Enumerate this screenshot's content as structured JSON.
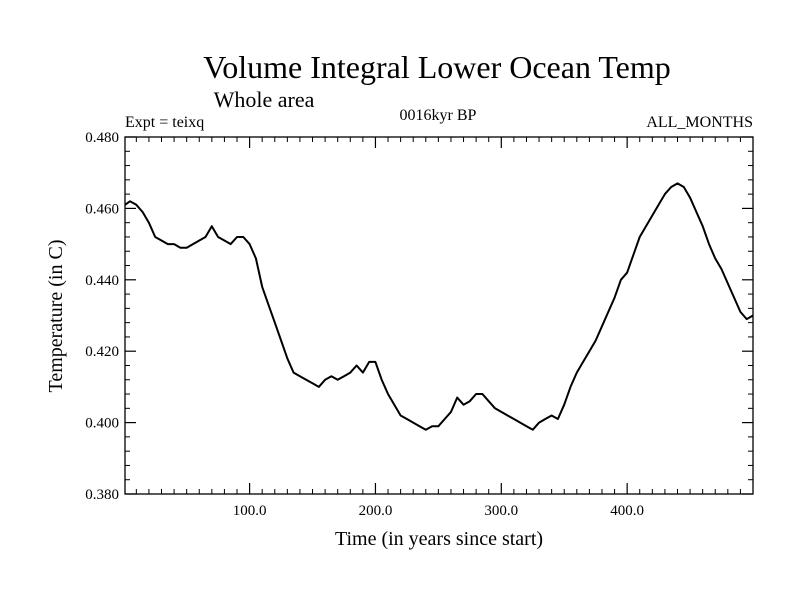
{
  "chart_data": {
    "type": "line",
    "title": "Volume Integral Lower Ocean Temp",
    "subtitle": "Whole area",
    "left_label": "Expt = teixq",
    "center_label": "0016kyr BP",
    "right_label": "ALL_MONTHS",
    "xlabel": "Time (in years since start)",
    "ylabel": "Temperature (in C)",
    "xlim": [
      1,
      500
    ],
    "ylim": [
      0.38,
      0.48
    ],
    "x_ticks": [
      {
        "value": 100,
        "label": "100.0"
      },
      {
        "value": 200,
        "label": "200.0"
      },
      {
        "value": 300,
        "label": "300.0"
      },
      {
        "value": 400,
        "label": "400.0"
      }
    ],
    "y_ticks": [
      {
        "value": 0.38,
        "label": "0.380"
      },
      {
        "value": 0.4,
        "label": "0.400"
      },
      {
        "value": 0.42,
        "label": "0.420"
      },
      {
        "value": 0.44,
        "label": "0.440"
      },
      {
        "value": 0.46,
        "label": "0.460"
      },
      {
        "value": 0.48,
        "label": "0.480"
      }
    ],
    "series": [
      {
        "name": "teixq",
        "x": [
          1,
          5,
          10,
          15,
          20,
          25,
          30,
          35,
          40,
          45,
          50,
          55,
          60,
          65,
          70,
          75,
          80,
          85,
          90,
          95,
          100,
          105,
          110,
          115,
          120,
          125,
          130,
          135,
          140,
          145,
          150,
          155,
          160,
          165,
          170,
          175,
          180,
          185,
          190,
          195,
          200,
          205,
          210,
          215,
          220,
          225,
          230,
          235,
          240,
          245,
          250,
          255,
          260,
          265,
          270,
          275,
          280,
          285,
          290,
          295,
          300,
          305,
          310,
          315,
          320,
          325,
          330,
          335,
          340,
          345,
          350,
          355,
          360,
          365,
          370,
          375,
          380,
          385,
          390,
          395,
          400,
          405,
          410,
          415,
          420,
          425,
          430,
          435,
          440,
          445,
          450,
          455,
          460,
          465,
          470,
          475,
          480,
          485,
          490,
          495,
          500
        ],
        "y": [
          0.461,
          0.462,
          0.461,
          0.459,
          0.456,
          0.452,
          0.451,
          0.45,
          0.45,
          0.449,
          0.449,
          0.45,
          0.451,
          0.452,
          0.455,
          0.452,
          0.451,
          0.45,
          0.452,
          0.452,
          0.45,
          0.446,
          0.438,
          0.433,
          0.428,
          0.423,
          0.418,
          0.414,
          0.413,
          0.412,
          0.411,
          0.41,
          0.412,
          0.413,
          0.412,
          0.413,
          0.414,
          0.416,
          0.414,
          0.417,
          0.417,
          0.412,
          0.408,
          0.405,
          0.402,
          0.401,
          0.4,
          0.399,
          0.398,
          0.399,
          0.399,
          0.401,
          0.403,
          0.407,
          0.405,
          0.406,
          0.408,
          0.408,
          0.406,
          0.404,
          0.403,
          0.402,
          0.401,
          0.4,
          0.399,
          0.398,
          0.4,
          0.401,
          0.402,
          0.401,
          0.405,
          0.41,
          0.414,
          0.417,
          0.42,
          0.423,
          0.427,
          0.431,
          0.435,
          0.44,
          0.442,
          0.447,
          0.452,
          0.455,
          0.458,
          0.461,
          0.464,
          0.466,
          0.467,
          0.466,
          0.463,
          0.459,
          0.455,
          0.45,
          0.446,
          0.443,
          0.439,
          0.435,
          0.431,
          0.429,
          0.43
        ]
      }
    ]
  }
}
